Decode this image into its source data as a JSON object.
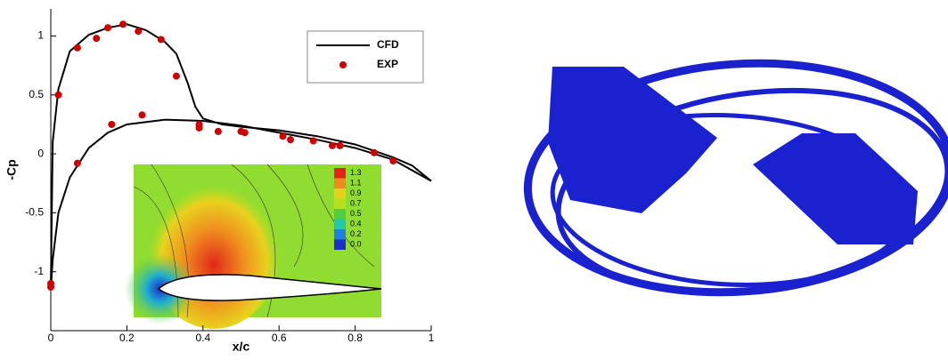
{
  "chart_data": [
    {
      "type": "line",
      "xlabel": "x/c",
      "ylabel": "-Cp",
      "xlim": [
        0,
        1
      ],
      "ylim": [
        -1.5,
        1.23
      ],
      "xticks": [
        0,
        0.2,
        0.4,
        0.6,
        0.8,
        1
      ],
      "yticks": [
        -1,
        -0.5,
        0,
        0.5,
        1
      ],
      "legend": "upper right",
      "series": [
        {
          "name": "CFD",
          "color": "#000000",
          "mode": "line",
          "x": [
            0,
            0.005,
            0.02,
            0.05,
            0.1,
            0.15,
            0.2,
            0.25,
            0.3,
            0.33,
            0.36,
            0.38,
            0.4,
            0.45,
            0.5,
            0.6,
            0.7,
            0.8,
            0.9,
            0.95,
            1.0,
            null,
            0,
            0.005,
            0.02,
            0.05,
            0.1,
            0.15,
            0.2,
            0.3,
            0.4,
            0.5,
            0.6,
            0.7,
            0.8,
            0.9,
            1.0
          ],
          "values": [
            -1.15,
            0.1,
            0.55,
            0.87,
            1.01,
            1.07,
            1.1,
            1.05,
            0.95,
            0.85,
            0.6,
            0.4,
            0.3,
            0.25,
            0.23,
            0.2,
            0.15,
            0.08,
            -0.03,
            -0.1,
            -0.23,
            null,
            -1.15,
            -0.9,
            -0.5,
            -0.2,
            0.05,
            0.18,
            0.25,
            0.29,
            0.28,
            0.24,
            0.18,
            0.12,
            0.05,
            -0.05,
            -0.23
          ]
        },
        {
          "name": "EXP",
          "color": "#cc0000",
          "mode": "scatter",
          "x": [
            0,
            0,
            0.02,
            0.07,
            0.07,
            0.12,
            0.15,
            0.16,
            0.19,
            0.23,
            0.24,
            0.29,
            0.33,
            0.39,
            0.39,
            0.44,
            0.5,
            0.51,
            0.61,
            0.63,
            0.69,
            0.74,
            0.76,
            0.85,
            0.9
          ],
          "values": [
            -1.1,
            -1.13,
            0.5,
            0.9,
            -0.08,
            0.98,
            1.07,
            0.25,
            1.1,
            1.04,
            0.33,
            0.97,
            0.66,
            0.25,
            0.22,
            0.19,
            0.19,
            0.18,
            0.15,
            0.12,
            0.11,
            0.07,
            0.07,
            0.01,
            -0.06
          ]
        }
      ]
    },
    {
      "type": "contour",
      "colorbar_ticks": [
        1.3,
        1.1,
        0.9,
        0.7,
        0.5,
        0.4,
        0.2,
        {
          "value": 0,
          "label": "0.0"
        }
      ],
      "colorbar_colors": [
        "#e8201a",
        "#f08a1e",
        "#e6d21e",
        "#b4e01e",
        "#50d040",
        "#20c8b0",
        "#2080e0",
        "#1830c8"
      ]
    }
  ]
}
